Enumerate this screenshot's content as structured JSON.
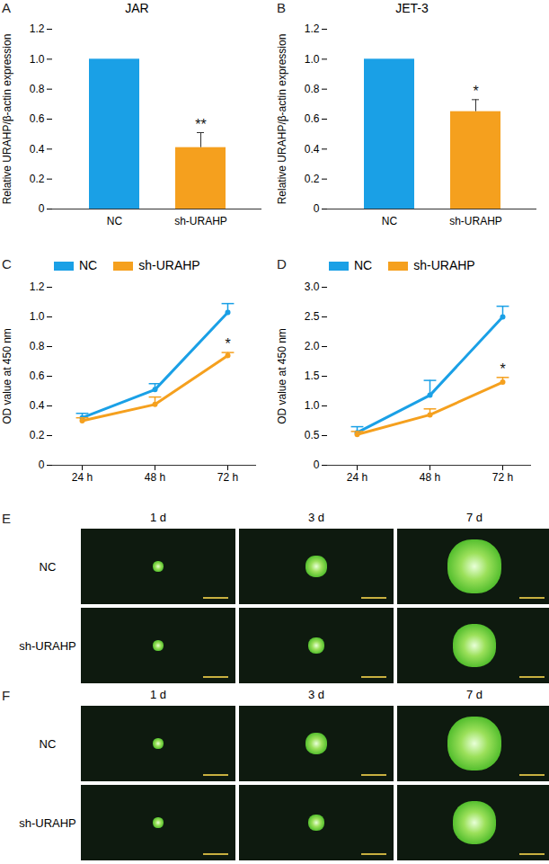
{
  "chart_data": [
    {
      "panel": "A",
      "type": "bar",
      "title": "JAR",
      "categories": [
        "NC",
        "sh-URAHP"
      ],
      "values": [
        1.0,
        0.41
      ],
      "errors": [
        0,
        0.1
      ],
      "colors": [
        "#1aa0e6",
        "#f5a01e"
      ],
      "y_label": "Relative URAHP/β-actin expression",
      "ylim": [
        0,
        1.2
      ],
      "yticks": [
        0,
        0.2,
        0.4,
        0.6,
        0.8,
        {
          "value": 1,
          "label": "1.0"
        },
        1.2
      ],
      "annotations": [
        {
          "category": "sh-URAHP",
          "text": "**"
        }
      ]
    },
    {
      "panel": "B",
      "type": "bar",
      "title": "JET-3",
      "categories": [
        "NC",
        "sh-URAHP"
      ],
      "values": [
        1.0,
        0.65
      ],
      "errors": [
        0,
        0.08
      ],
      "colors": [
        "#1aa0e6",
        "#f5a01e"
      ],
      "y_label": "Relative URAHP/β-actin expression",
      "ylim": [
        0,
        1.2
      ],
      "yticks": [
        0,
        0.2,
        0.4,
        0.6,
        0.8,
        {
          "value": 1,
          "label": "1.0"
        },
        1.2
      ],
      "annotations": [
        {
          "category": "sh-URAHP",
          "text": "*"
        }
      ]
    },
    {
      "panel": "C",
      "type": "line",
      "legend": "top",
      "categories": [
        "24 h",
        "48 h",
        "72 h"
      ],
      "series": [
        {
          "name": "NC",
          "color": "#1aa0e6",
          "values": [
            0.32,
            0.51,
            1.03
          ],
          "errors": [
            0.03,
            0.04,
            0.06
          ]
        },
        {
          "name": "sh-URAHP",
          "color": "#f5a01e",
          "values": [
            0.3,
            0.41,
            0.74
          ],
          "errors": [
            0.02,
            0.05,
            0.02
          ]
        }
      ],
      "y_label": "OD value at 450 nm",
      "ylim": [
        0,
        1.2
      ],
      "yticks": [
        0,
        0.2,
        0.4,
        0.6,
        0.8,
        {
          "value": 1,
          "label": "1.0"
        },
        1.2
      ],
      "annotations": [
        {
          "category": "72 h",
          "series": "sh-URAHP",
          "text": "*"
        }
      ]
    },
    {
      "panel": "D",
      "type": "line",
      "legend": "top",
      "categories": [
        "24 h",
        "48 h",
        "72 h"
      ],
      "series": [
        {
          "name": "NC",
          "color": "#1aa0e6",
          "values": [
            0.55,
            1.18,
            2.5
          ],
          "errors": [
            0.1,
            0.25,
            0.18
          ]
        },
        {
          "name": "sh-URAHP",
          "color": "#f5a01e",
          "values": [
            0.52,
            0.85,
            1.4
          ],
          "errors": [
            0.05,
            0.1,
            0.08
          ]
        }
      ],
      "y_label": "OD value at 450 nm",
      "ylim": [
        0,
        3
      ],
      "yticks": [
        0,
        0.5,
        {
          "value": 1,
          "label": "1.0"
        },
        1.5,
        {
          "value": 2,
          "label": "2.0"
        },
        2.5,
        {
          "value": 3,
          "label": "3.0"
        }
      ],
      "annotations": [
        {
          "category": "72 h",
          "series": "sh-URAHP",
          "text": "*"
        }
      ]
    }
  ],
  "image_panels": [
    {
      "panel": "E",
      "columns": [
        "1 d",
        "3 d",
        "7 d"
      ],
      "rows": [
        "NC",
        "sh-URAHP"
      ]
    },
    {
      "panel": "F",
      "columns": [
        "1 d",
        "3 d",
        "7 d"
      ],
      "rows": [
        "NC",
        "sh-URAHP"
      ]
    }
  ]
}
